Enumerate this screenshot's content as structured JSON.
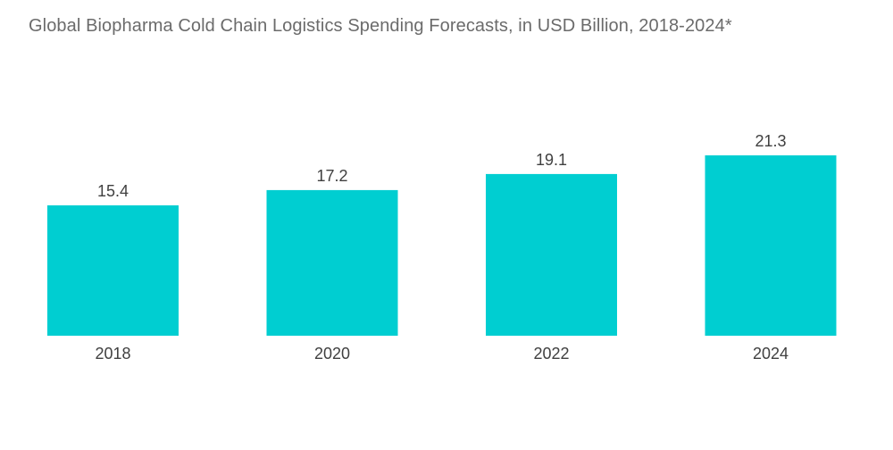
{
  "chart_data": {
    "type": "bar",
    "title": "Global Biopharma Cold Chain Logistics Spending Forecasts, in USD Billion, 2018-2024*",
    "categories": [
      "2018",
      "2020",
      "2022",
      "2024"
    ],
    "values": [
      15.4,
      17.2,
      19.1,
      21.3
    ],
    "value_labels": [
      "15.4",
      "17.2",
      "19.1",
      "21.3"
    ],
    "xlabel": "",
    "ylabel": "",
    "ylim": [
      0,
      21.3
    ],
    "grid": false,
    "bar_color": "#00ced1"
  }
}
